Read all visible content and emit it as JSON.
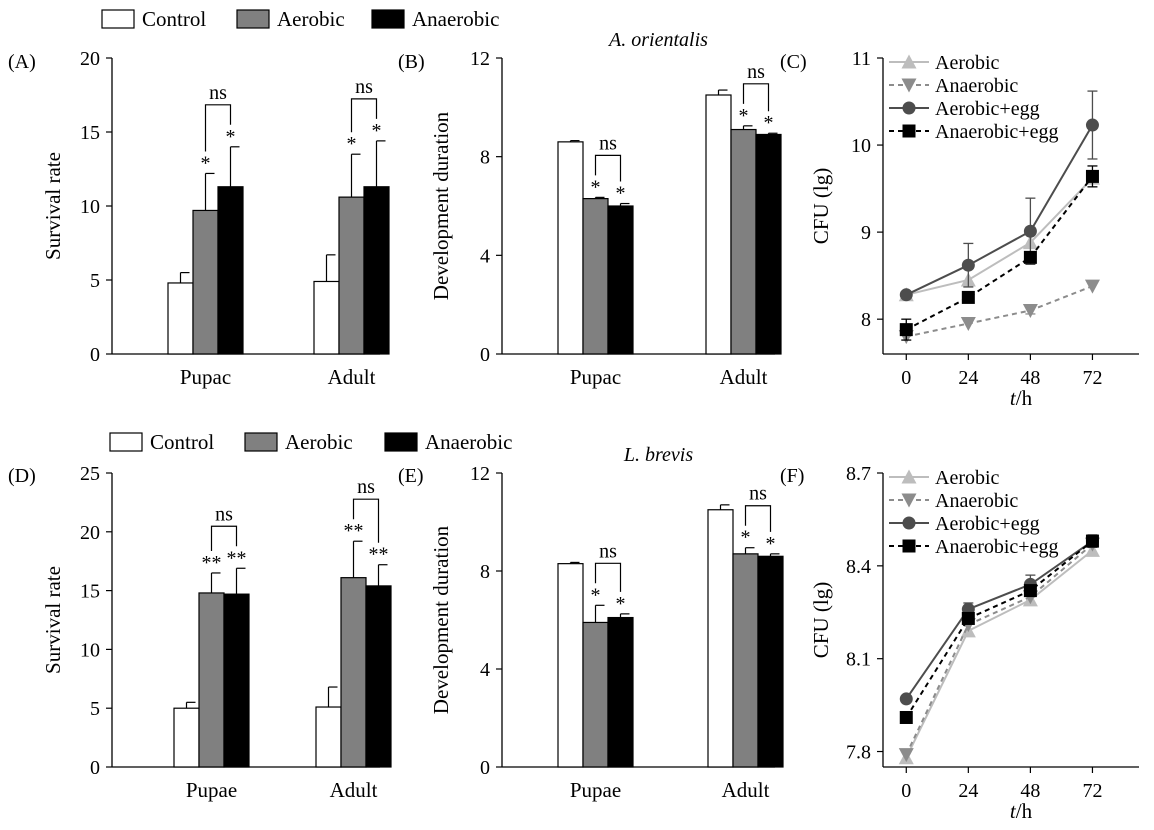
{
  "legends": {
    "top": [
      "Control",
      "Aerobic",
      "Anaerobic"
    ],
    "bottom": [
      "Control",
      "Aerobic",
      "Anaerobic"
    ]
  },
  "x_axis_title_C": "t/h",
  "x_axis_title_F": "t/h",
  "colors": {
    "control": "#ffffff",
    "aerobic": "#808080",
    "anaerobic": "#000000",
    "line_aerobic": "#bdbdbd",
    "line_anaerobic": "#8c8c8c",
    "line_aerobic_egg": "#4d4d4d",
    "line_anaerobic_egg": "#000000"
  },
  "chart_data": [
    {
      "panel": "(A)",
      "type": "bar",
      "title": "",
      "xlabel": "",
      "ylabel": "Survival rate",
      "ylim": [
        0,
        20
      ],
      "yticks": [
        0,
        5,
        10,
        15,
        20
      ],
      "categories": [
        "Pupac",
        "Adult"
      ],
      "series": [
        {
          "name": "Control",
          "values": [
            4.8,
            4.9
          ],
          "errors": [
            0.7,
            1.8
          ],
          "marks": [
            "",
            ""
          ]
        },
        {
          "name": "Aerobic",
          "values": [
            9.7,
            10.6
          ],
          "errors": [
            2.5,
            2.9
          ],
          "marks": [
            "*",
            "*"
          ]
        },
        {
          "name": "Anaerobic",
          "values": [
            11.3,
            11.3
          ],
          "errors": [
            2.7,
            3.1
          ],
          "marks": [
            "*",
            "*"
          ]
        }
      ],
      "brackets": [
        {
          "category": 0,
          "label": "ns"
        },
        {
          "category": 1,
          "label": "ns"
        }
      ]
    },
    {
      "panel": "(B)",
      "type": "bar",
      "title": "A. orientalis",
      "xlabel": "",
      "ylabel": "Development duration",
      "ylim": [
        0,
        12
      ],
      "yticks": [
        0,
        4,
        8,
        12
      ],
      "categories": [
        "Pupac",
        "Adult"
      ],
      "series": [
        {
          "name": "Control",
          "values": [
            8.6,
            10.5
          ],
          "errors": [
            0.05,
            0.2
          ],
          "marks": [
            "",
            ""
          ]
        },
        {
          "name": "Aerobic",
          "values": [
            6.3,
            9.1
          ],
          "errors": [
            0.05,
            0.15
          ],
          "marks": [
            "*",
            "*"
          ]
        },
        {
          "name": "Anaerobic",
          "values": [
            6.0,
            8.9
          ],
          "errors": [
            0.1,
            0.05
          ],
          "marks": [
            "*",
            "*"
          ]
        }
      ],
      "brackets": [
        {
          "category": 0,
          "label": "ns"
        },
        {
          "category": 1,
          "label": "ns"
        }
      ]
    },
    {
      "panel": "(C)",
      "type": "line",
      "title": "",
      "xlabel": "t/h",
      "ylabel": "CFU (lg)",
      "x": [
        0,
        24,
        48,
        72
      ],
      "xlim": [
        -9,
        90
      ],
      "ylim": [
        7.6,
        11
      ],
      "yticks": [
        8,
        9,
        10,
        11
      ],
      "legend": "top-left",
      "series": [
        {
          "name": "Aerobic",
          "values": [
            8.28,
            8.45,
            8.88,
            9.62
          ],
          "errors": [
            0,
            0,
            0,
            0
          ]
        },
        {
          "name": "Anaerobic",
          "values": [
            7.8,
            7.95,
            8.1,
            8.38
          ],
          "errors": [
            0,
            0,
            0.04,
            0
          ]
        },
        {
          "name": "Aerobic+egg",
          "values": [
            8.28,
            8.62,
            9.01,
            10.23
          ],
          "errors": [
            0,
            0.25,
            0.38,
            0.39
          ]
        },
        {
          "name": "Anaerobic+egg",
          "values": [
            7.88,
            8.25,
            8.71,
            9.64
          ],
          "errors": [
            0.12,
            0,
            0,
            0.12
          ]
        }
      ]
    },
    {
      "panel": "(D)",
      "type": "bar",
      "title": "",
      "xlabel": "",
      "ylabel": "Survival rate",
      "ylim": [
        0,
        25
      ],
      "yticks": [
        0,
        5,
        10,
        15,
        20,
        25
      ],
      "categories": [
        "Pupae",
        "Adult"
      ],
      "series": [
        {
          "name": "Control",
          "values": [
            5.0,
            5.1
          ],
          "errors": [
            0.5,
            1.7
          ],
          "marks": [
            "",
            ""
          ]
        },
        {
          "name": "Aerobic",
          "values": [
            14.8,
            16.1
          ],
          "errors": [
            1.7,
            3.1
          ],
          "marks": [
            "**",
            "**"
          ]
        },
        {
          "name": "Anaerobic",
          "values": [
            14.7,
            15.4
          ],
          "errors": [
            2.2,
            1.8
          ],
          "marks": [
            "**",
            "**"
          ]
        }
      ],
      "brackets": [
        {
          "category": 0,
          "label": "ns"
        },
        {
          "category": 1,
          "label": "ns"
        }
      ]
    },
    {
      "panel": "(E)",
      "type": "bar",
      "title": "L. brevis",
      "xlabel": "",
      "ylabel": "Development duration",
      "ylim": [
        0,
        12
      ],
      "yticks": [
        0,
        4,
        8,
        12
      ],
      "categories": [
        "Pupae",
        "Adult"
      ],
      "series": [
        {
          "name": "Control",
          "values": [
            8.3,
            10.5
          ],
          "errors": [
            0.05,
            0.2
          ],
          "marks": [
            "",
            ""
          ]
        },
        {
          "name": "Aerobic",
          "values": [
            5.9,
            8.7
          ],
          "errors": [
            0.7,
            0.25
          ],
          "marks": [
            "*",
            "*"
          ]
        },
        {
          "name": "Anaerobic",
          "values": [
            6.1,
            8.6
          ],
          "errors": [
            0.15,
            0.1
          ],
          "marks": [
            "*",
            "*"
          ]
        }
      ],
      "brackets": [
        {
          "category": 0,
          "label": "ns"
        },
        {
          "category": 1,
          "label": "ns"
        }
      ]
    },
    {
      "panel": "(F)",
      "type": "line",
      "title": "",
      "xlabel": "t/h",
      "ylabel": "CFU (lg)",
      "x": [
        0,
        24,
        48,
        72
      ],
      "xlim": [
        -9,
        90
      ],
      "ylim": [
        7.75,
        8.7
      ],
      "yticks": [
        7.8,
        8.1,
        8.4,
        8.7
      ],
      "legend": "top-left",
      "series": [
        {
          "name": "Aerobic",
          "values": [
            7.78,
            8.19,
            8.29,
            8.45
          ],
          "errors": [
            0,
            0,
            0,
            0
          ]
        },
        {
          "name": "Anaerobic",
          "values": [
            7.79,
            8.21,
            8.3,
            8.47
          ],
          "errors": [
            0,
            0,
            0,
            0
          ]
        },
        {
          "name": "Aerobic+egg",
          "values": [
            7.97,
            8.26,
            8.34,
            8.48
          ],
          "errors": [
            0,
            0.02,
            0.03,
            0.02
          ]
        },
        {
          "name": "Anaerobic+egg",
          "values": [
            7.91,
            8.23,
            8.32,
            8.48
          ],
          "errors": [
            0,
            0,
            0,
            0
          ]
        }
      ]
    }
  ]
}
